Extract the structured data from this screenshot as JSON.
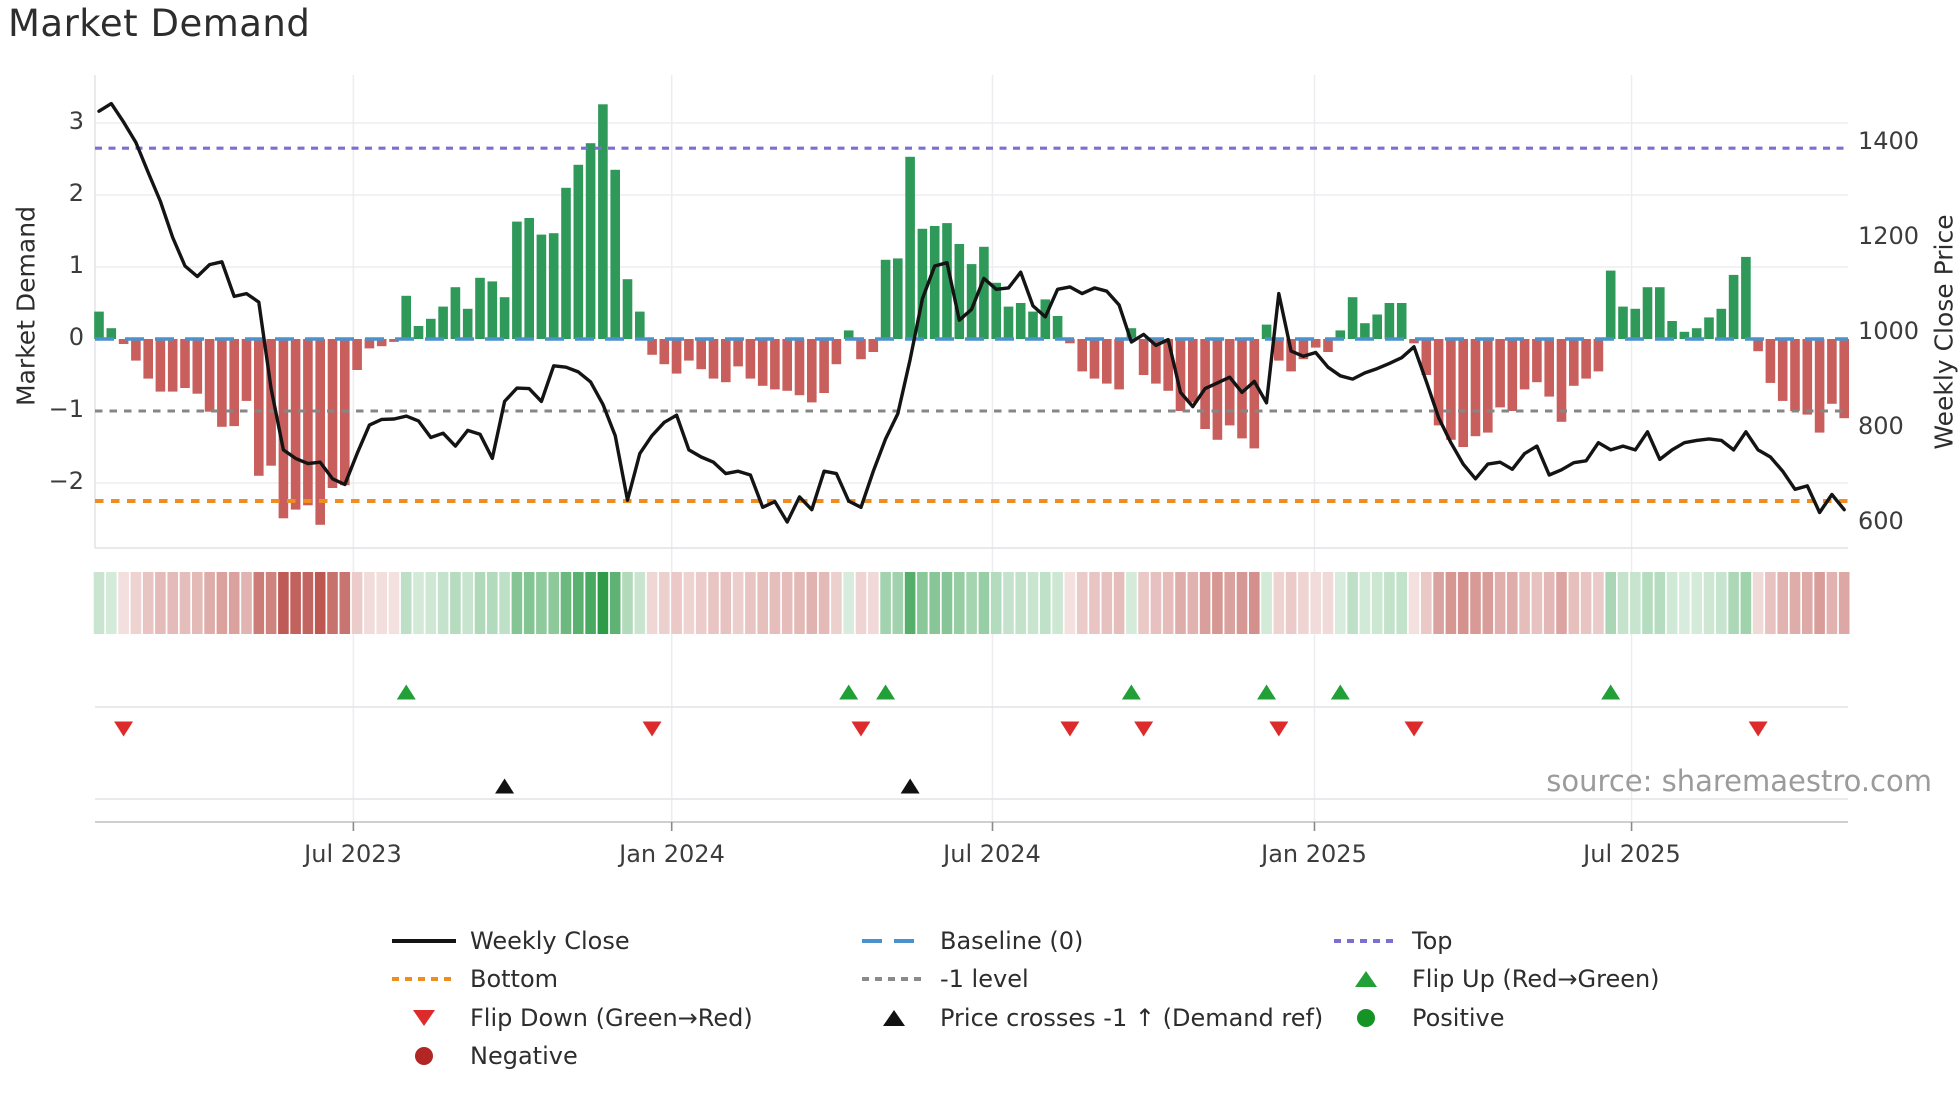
{
  "title": "Market Demand",
  "source_note": "source: sharemaestro.com",
  "axes": {
    "left_label": "Market Demand",
    "right_label": "Weekly Close Price",
    "left_ticks": [
      "3",
      "2",
      "1",
      "0",
      "−1",
      "−2"
    ],
    "left_tick_values": [
      3,
      2,
      1,
      0,
      -1,
      -2
    ],
    "right_ticks": [
      "1400",
      "1200",
      "1000",
      "800",
      "600"
    ],
    "right_tick_values": [
      1400,
      1200,
      1000,
      800,
      600
    ],
    "x_tick_labels": [
      "Jul 2023",
      "Jan 2024",
      "Jul 2024",
      "Jan 2025",
      "Jul 2025"
    ],
    "x_tick_week_index": [
      20.7,
      46.6,
      72.7,
      98.9,
      124.7
    ]
  },
  "legend": {
    "items": [
      {
        "label": "Weekly Close",
        "type": "line",
        "color": "#141414",
        "col": 1,
        "row": 1
      },
      {
        "label": "Bottom",
        "type": "dotted",
        "color": "#ee8d20",
        "col": 1,
        "row": 2
      },
      {
        "label": "Flip Down (Green→Red)",
        "type": "tri-down",
        "color": "#dd2b2b",
        "col": 1,
        "row": 3
      },
      {
        "label": "Negative",
        "type": "circle",
        "color": "#b22626",
        "col": 1,
        "row": 4
      },
      {
        "label": "Baseline (0)",
        "type": "dashed",
        "color": "#4a92cc",
        "col": 2,
        "row": 1
      },
      {
        "label": "-1 level",
        "type": "dotted",
        "color": "#8a8a8a",
        "col": 2,
        "row": 2
      },
      {
        "label": "Price crosses -1 ↑ (Demand ref)",
        "type": "tri-up",
        "color": "#111111",
        "col": 2,
        "row": 3
      },
      {
        "label": "Top",
        "type": "dotted",
        "color": "#7b6fd0",
        "col": 3,
        "row": 1
      },
      {
        "label": "Flip Up (Red→Green)",
        "type": "tri-up",
        "color": "#22a038",
        "col": 3,
        "row": 2
      },
      {
        "label": "Positive",
        "type": "circle",
        "color": "#169325",
        "col": 3,
        "row": 3
      }
    ]
  },
  "chart_data": {
    "type": "bar+line",
    "title": "Market Demand",
    "x_frequency": "weekly",
    "x_tick_labels": [
      "Jul 2023",
      "Jan 2024",
      "Jul 2024",
      "Jan 2025",
      "Jul 2025"
    ],
    "x_tick_week_index": [
      20.7,
      46.6,
      72.7,
      98.9,
      124.7
    ],
    "left_axis": {
      "label": "Market Demand",
      "ticks": [
        3,
        2,
        1,
        0,
        -1,
        -2
      ],
      "approx_range": [
        -2.9,
        3.65
      ]
    },
    "right_axis": {
      "label": "Weekly Close Price",
      "ticks": [
        1400,
        1200,
        1000,
        800,
        600
      ],
      "approx_range": [
        547,
        1543
      ]
    },
    "reference_lines": {
      "top": 2.65,
      "baseline": 0,
      "minus_one": -1,
      "bottom": -2.25
    },
    "demand_bars": [
      0.38,
      0.15,
      -0.07,
      -0.3,
      -0.55,
      -0.73,
      -0.73,
      -0.68,
      -0.76,
      -1.01,
      -1.22,
      -1.21,
      -0.86,
      -1.9,
      -1.76,
      -2.49,
      -2.37,
      -2.31,
      -2.58,
      -2.07,
      -2.03,
      -0.43,
      -0.13,
      -0.1,
      -0.04,
      0.6,
      0.18,
      0.28,
      0.45,
      0.72,
      0.42,
      0.85,
      0.8,
      0.58,
      1.63,
      1.68,
      1.45,
      1.47,
      2.1,
      2.42,
      2.72,
      3.26,
      2.35,
      0.83,
      0.38,
      -0.22,
      -0.35,
      -0.48,
      -0.3,
      -0.42,
      -0.55,
      -0.6,
      -0.38,
      -0.55,
      -0.65,
      -0.7,
      -0.72,
      -0.78,
      -0.88,
      -0.75,
      -0.35,
      0.12,
      -0.28,
      -0.18,
      1.1,
      1.12,
      2.53,
      1.53,
      1.57,
      1.61,
      1.32,
      1.04,
      1.28,
      0.78,
      0.45,
      0.5,
      0.38,
      0.55,
      0.32,
      -0.06,
      -0.45,
      -0.55,
      -0.62,
      -0.7,
      0.15,
      -0.5,
      -0.62,
      -0.72,
      -1.0,
      -0.88,
      -1.25,
      -1.4,
      -1.2,
      -1.38,
      -1.52,
      0.2,
      -0.3,
      -0.45,
      -0.28,
      -0.12,
      -0.18,
      0.12,
      0.58,
      0.22,
      0.34,
      0.5,
      0.5,
      -0.06,
      -0.5,
      -1.2,
      -1.4,
      -1.5,
      -1.35,
      -1.3,
      -0.95,
      -1.0,
      -0.7,
      -0.6,
      -0.8,
      -1.15,
      -0.65,
      -0.55,
      -0.45,
      0.95,
      0.45,
      0.42,
      0.72,
      0.72,
      0.25,
      0.1,
      0.15,
      0.3,
      0.42,
      0.89,
      1.14,
      -0.17,
      -0.61,
      -0.86,
      -1.0,
      -1.05,
      -1.3,
      -0.9,
      -1.1
    ],
    "weekly_close_price": [
      1467,
      1483,
      1444,
      1401,
      1338,
      1277,
      1201,
      1141,
      1119,
      1144,
      1150,
      1077,
      1083,
      1065,
      883,
      754,
      736,
      725,
      728,
      693,
      681,
      746,
      806,
      818,
      819,
      825,
      815,
      780,
      789,
      762,
      795,
      787,
      736,
      856,
      884,
      883,
      856,
      931,
      928,
      918,
      897,
      850,
      784,
      648,
      746,
      784,
      812,
      827,
      754,
      739,
      728,
      704,
      709,
      701,
      633,
      645,
      602,
      655,
      628,
      709,
      704,
      646,
      633,
      709,
      777,
      830,
      944,
      1072,
      1141,
      1148,
      1027,
      1050,
      1115,
      1092,
      1095,
      1128,
      1057,
      1034,
      1092,
      1097,
      1083,
      1095,
      1088,
      1059,
      981,
      997,
      974,
      986,
      875,
      845,
      883,
      895,
      907,
      875,
      898,
      853,
      1083,
      962,
      951,
      959,
      928,
      910,
      903,
      916,
      925,
      936,
      948,
      971,
      898,
      822,
      769,
      724,
      693,
      724,
      728,
      713,
      746,
      762,
      701,
      712,
      727,
      731,
      769,
      754,
      762,
      754,
      792,
      734,
      754,
      769,
      774,
      777,
      774,
      754,
      792,
      754,
      739,
      709,
      671,
      678,
      622,
      660,
      628
    ],
    "price_axis_mapping": {
      "price_at_demand_zero": 989,
      "price_per_demand_unit": 151.6
    },
    "flip_up_weeks": [
      25,
      61,
      64,
      84,
      95,
      101,
      123
    ],
    "flip_down_weeks": [
      2,
      45,
      62,
      79,
      85,
      96,
      107,
      135
    ],
    "price_cross_up_weeks": [
      33,
      66
    ],
    "heatmap": "color strip derived from demand_bars (green positive / red negative, intensity = |value|)",
    "colors": {
      "bar_positive": "#2f9959",
      "bar_negative": "#c95f5d",
      "price_line": "#141414",
      "baseline": "#4a92cc",
      "top": "#7b6fd0",
      "bottom": "#ee8d20",
      "minus_one": "#868686",
      "flip_up": "#22a038",
      "flip_down": "#dd2b2b",
      "price_cross": "#111111",
      "heat_green": "#2b9a46",
      "heat_red": "#ba504a"
    }
  }
}
